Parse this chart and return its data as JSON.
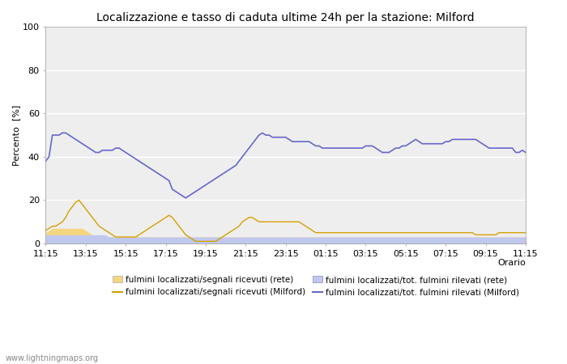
{
  "title": "Localizzazione e tasso di caduta ultime 24h per la stazione: Milford",
  "ylabel": "Percento  [%]",
  "xlabel": "Orario",
  "ylim": [
    0,
    100
  ],
  "yticks": [
    0,
    20,
    40,
    60,
    80,
    100
  ],
  "xtick_labels": [
    "11:15",
    "13:15",
    "15:15",
    "17:15",
    "19:15",
    "21:15",
    "23:15",
    "01:15",
    "03:15",
    "05:15",
    "07:15",
    "09:15",
    "11:15"
  ],
  "bg_color": "#ffffff",
  "plot_bg_color": "#eeeeee",
  "grid_color": "#ffffff",
  "watermark": "www.lightningmaps.org",
  "fill_rete_signals_color": "#f5d580",
  "fill_rete_total_color": "#c0c8f0",
  "line_milford_signals_color": "#d4a000",
  "line_milford_total_color": "#6666cc",
  "legend_labels": [
    "fulmini localizzati/segnali ricevuti (rete)",
    "fulmini localizzati/segnali ricevuti (Milford)",
    "fulmini localizzati/tot. fulmini rilevati (rete)",
    "fulmini localizzati/tot. fulmini rilevati (Milford)"
  ],
  "milford_total": [
    38,
    40,
    50,
    50,
    50,
    51,
    51,
    50,
    49,
    48,
    47,
    46,
    45,
    44,
    43,
    42,
    42,
    43,
    43,
    43,
    43,
    44,
    44,
    43,
    42,
    41,
    40,
    39,
    38,
    37,
    36,
    35,
    34,
    33,
    32,
    31,
    30,
    29,
    25,
    24,
    23,
    22,
    21,
    22,
    23,
    24,
    25,
    26,
    27,
    28,
    29,
    30,
    31,
    32,
    33,
    34,
    35,
    36,
    38,
    40,
    42,
    44,
    46,
    48,
    50,
    51,
    50,
    50,
    49,
    49,
    49,
    49,
    49,
    48,
    47,
    47,
    47,
    47,
    47,
    47,
    46,
    45,
    45,
    44,
    44,
    44,
    44,
    44,
    44,
    44,
    44,
    44,
    44,
    44,
    44,
    44,
    45,
    45,
    45,
    44,
    43,
    42,
    42,
    42,
    43,
    44,
    44,
    45,
    45,
    46,
    47,
    48,
    47,
    46,
    46,
    46,
    46,
    46,
    46,
    46,
    47,
    47,
    48,
    48,
    48,
    48,
    48,
    48,
    48,
    48,
    47,
    46,
    45,
    44,
    44,
    44,
    44,
    44,
    44,
    44,
    44,
    42,
    42,
    43,
    42
  ],
  "milford_signals": [
    6,
    7,
    8,
    8,
    9,
    10,
    12,
    15,
    17,
    19,
    20,
    18,
    16,
    14,
    12,
    10,
    8,
    7,
    6,
    5,
    4,
    3,
    3,
    3,
    3,
    3,
    3,
    3,
    4,
    5,
    6,
    7,
    8,
    9,
    10,
    11,
    12,
    13,
    12,
    10,
    8,
    6,
    4,
    3,
    2,
    1,
    1,
    1,
    1,
    1,
    1,
    1,
    2,
    3,
    4,
    5,
    6,
    7,
    8,
    10,
    11,
    12,
    12,
    11,
    10,
    10,
    10,
    10,
    10,
    10,
    10,
    10,
    10,
    10,
    10,
    10,
    10,
    9,
    8,
    7,
    6,
    5,
    5,
    5,
    5,
    5,
    5,
    5,
    5,
    5,
    5,
    5,
    5,
    5,
    5,
    5,
    5,
    5,
    5,
    5,
    5,
    5,
    5,
    5,
    5,
    5,
    5,
    5,
    5,
    5,
    5,
    5,
    5,
    5,
    5,
    5,
    5,
    5,
    5,
    5,
    5,
    5,
    5,
    5,
    5,
    5,
    5,
    5,
    5,
    4,
    4,
    4,
    4,
    4,
    4,
    4,
    5,
    5,
    5,
    5,
    5,
    5,
    5,
    5,
    5
  ],
  "rete_signals": [
    5,
    6,
    7,
    7,
    7,
    7,
    7,
    7,
    7,
    7,
    7,
    7,
    6,
    5,
    4,
    4,
    3,
    3,
    3,
    3,
    3,
    3,
    3,
    3,
    3,
    3,
    3,
    3,
    3,
    3,
    3,
    3,
    3,
    3,
    3,
    3,
    3,
    3,
    3,
    3,
    3,
    3,
    3,
    3,
    3,
    3,
    3,
    3,
    3,
    3,
    3,
    3,
    3,
    3,
    3,
    3,
    3,
    3,
    3,
    3,
    3,
    3,
    3,
    3,
    3,
    3,
    3,
    3,
    3,
    3,
    3,
    3,
    3,
    3,
    3,
    3,
    3,
    3,
    3,
    3,
    3,
    3,
    3,
    3,
    3,
    3,
    3,
    3,
    3,
    3,
    3,
    3,
    3,
    3,
    3,
    3,
    3,
    3,
    3,
    3,
    3,
    3,
    3,
    3,
    3,
    3,
    3,
    3,
    3,
    3,
    3,
    3,
    3,
    3,
    3,
    3,
    3,
    3,
    3,
    3,
    3,
    3,
    3,
    3,
    3,
    3,
    3,
    3,
    3,
    3,
    3,
    3,
    3,
    3,
    3,
    3,
    3,
    3,
    3,
    3,
    3,
    3,
    3,
    3,
    3
  ],
  "rete_total": [
    4,
    4,
    4,
    4,
    4,
    4,
    4,
    4,
    4,
    4,
    4,
    4,
    4,
    4,
    4,
    4,
    4,
    4,
    4,
    3,
    3,
    3,
    3,
    3,
    3,
    3,
    3,
    3,
    3,
    3,
    3,
    3,
    3,
    3,
    3,
    3,
    3,
    3,
    3,
    3,
    3,
    3,
    3,
    3,
    3,
    3,
    3,
    3,
    3,
    3,
    3,
    3,
    3,
    3,
    3,
    3,
    3,
    3,
    3,
    3,
    3,
    3,
    3,
    3,
    3,
    3,
    3,
    3,
    3,
    3,
    3,
    3,
    3,
    3,
    3,
    3,
    3,
    3,
    3,
    3,
    3,
    3,
    3,
    3,
    3,
    3,
    3,
    3,
    3,
    3,
    3,
    3,
    3,
    3,
    3,
    3,
    3,
    3,
    3,
    3,
    3,
    3,
    3,
    3,
    3,
    3,
    3,
    3,
    3,
    3,
    3,
    3,
    3,
    3,
    3,
    3,
    3,
    3,
    3,
    3,
    3,
    3,
    3,
    3,
    3,
    3,
    3,
    3,
    3,
    3,
    3,
    3,
    3,
    3,
    3,
    3,
    3,
    3,
    3,
    3,
    3,
    3,
    3,
    3,
    3
  ]
}
